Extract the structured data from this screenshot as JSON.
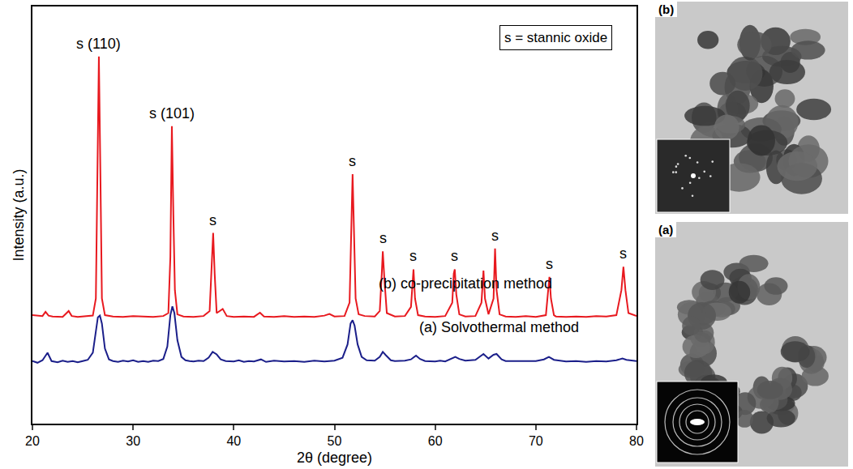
{
  "chart_data": {
    "type": "line",
    "x_label": "2θ (degree)",
    "y_label": "Intensity (a.u.)",
    "xlim": [
      20,
      80
    ],
    "xticks": [
      20,
      30,
      40,
      50,
      60,
      70,
      80
    ],
    "ylim": [
      0,
      100
    ],
    "tick_labels": "x",
    "grid": false,
    "series": [
      {
        "name": "(b) co-precipitation method",
        "color": "#e8191f",
        "x": [
          20,
          21,
          21.3,
          21.6,
          22,
          23,
          23.6,
          23.9,
          24.5,
          25,
          26,
          26.3,
          26.45,
          26.6,
          26.75,
          26.9,
          27.2,
          28,
          29,
          30,
          31,
          32,
          33,
          33.5,
          33.7,
          33.85,
          34.0,
          34.15,
          34.4,
          35,
          36,
          37,
          37.6,
          37.8,
          37.95,
          38.1,
          38.3,
          38.9,
          39.3,
          40,
          41,
          42,
          42.6,
          43,
          44,
          45,
          46,
          47,
          48,
          49,
          49.5,
          50,
          51,
          51.5,
          51.65,
          51.8,
          51.95,
          52.1,
          52.4,
          53,
          54,
          54.5,
          54.7,
          54.8,
          54.95,
          55.2,
          56,
          57,
          57.6,
          57.75,
          57.85,
          58.0,
          58.3,
          59,
          60,
          61,
          61.7,
          61.85,
          61.95,
          62.1,
          62.4,
          63,
          64,
          64.6,
          64.8,
          64.95,
          65.3,
          65.8,
          65.95,
          66.1,
          66.4,
          67,
          68,
          69,
          70,
          71,
          71.2,
          71.35,
          71.5,
          71.8,
          72,
          73,
          74,
          75,
          76,
          77,
          78,
          78.5,
          78.7,
          78.9,
          79.2,
          80
        ],
        "values": [
          26.0,
          25.8,
          26.8,
          25.9,
          25.7,
          25.6,
          27.0,
          25.8,
          25.6,
          25.7,
          25.9,
          30,
          60,
          88,
          60,
          30,
          26.0,
          25.7,
          25.6,
          25.8,
          25.7,
          25.6,
          25.8,
          26.5,
          40,
          71.3,
          50,
          32,
          26.2,
          25.7,
          25.6,
          25.8,
          27,
          38,
          45.7,
          36,
          26.5,
          27.5,
          25.8,
          25.6,
          25.7,
          25.6,
          26.6,
          25.7,
          25.6,
          25.8,
          25.6,
          25.7,
          25.6,
          25.9,
          26.3,
          25.7,
          25.8,
          29,
          45,
          59.8,
          45,
          30,
          26.2,
          25.8,
          25.7,
          27,
          36,
          41.3,
          35,
          26.5,
          25.7,
          25.8,
          28,
          35,
          37,
          30,
          26,
          25.7,
          25.6,
          25.8,
          29,
          36,
          37,
          31,
          26.2,
          25.7,
          25.8,
          29,
          36.7,
          30,
          26.2,
          30,
          42,
          32,
          26.2,
          25.7,
          25.6,
          25.8,
          25.6,
          26,
          32,
          35.2,
          30,
          26,
          25.7,
          25.6,
          25.7,
          25.6,
          25.8,
          25.7,
          26,
          32,
          37.6,
          32,
          26.5,
          25.8
        ]
      },
      {
        "name": "(a) Solvothermal method",
        "color": "#1b1f8a",
        "x": [
          20,
          20.5,
          21,
          21.5,
          21.9,
          22.5,
          23,
          23.5,
          24,
          24.5,
          25,
          25.5,
          26,
          26.3,
          26.5,
          26.7,
          26.9,
          27.2,
          27.6,
          28,
          28.5,
          29,
          29.5,
          30,
          30.5,
          31,
          31.5,
          32,
          32.5,
          33,
          33.4,
          33.7,
          33.9,
          34.1,
          34.4,
          34.8,
          35.2,
          35.6,
          36,
          36.5,
          37,
          37.5,
          37.9,
          38.3,
          38.7,
          39.2,
          40,
          40.5,
          41,
          41.5,
          42,
          42.7,
          43.2,
          44,
          45,
          46,
          47,
          48,
          49,
          50,
          50.8,
          51.3,
          51.6,
          51.8,
          52.0,
          52.3,
          52.7,
          53.2,
          54,
          54.5,
          54.8,
          55.1,
          55.6,
          56,
          57,
          57.6,
          58.1,
          58.5,
          59,
          60,
          60.5,
          61,
          61.6,
          62,
          62.4,
          63,
          64,
          64.8,
          65.3,
          65.8,
          66.1,
          66.6,
          67,
          68,
          69,
          70,
          70.8,
          71.3,
          71.8,
          72.5,
          73,
          74,
          75,
          76,
          77,
          78,
          78.6,
          79,
          80
        ],
        "values": [
          15,
          14.6,
          15.2,
          17,
          15,
          14.7,
          15.1,
          14.8,
          15,
          14.7,
          15.0,
          15.3,
          17,
          22,
          25.5,
          25.9,
          24,
          18,
          15.4,
          15,
          14.8,
          15.1,
          14.9,
          15.2,
          14.8,
          15.0,
          14.8,
          15.1,
          15.0,
          15.5,
          18.5,
          26,
          28.1,
          26.5,
          20,
          16,
          15.2,
          15.0,
          14.9,
          15.1,
          15.0,
          15.8,
          17.2,
          16.6,
          15.4,
          15.0,
          14.9,
          15.2,
          14.8,
          15,
          14.9,
          15.4,
          14.8,
          15.1,
          14.9,
          15.0,
          14.8,
          15.1,
          14.9,
          15.1,
          15.8,
          19,
          24,
          24.8,
          23.5,
          19,
          16,
          15.2,
          15.1,
          16,
          17.2,
          16.4,
          15.2,
          15.0,
          15.1,
          15.4,
          16.3,
          15.5,
          15.0,
          14.9,
          15.1,
          14.9,
          15.5,
          16.0,
          15.5,
          15.1,
          15.3,
          16.7,
          15.6,
          16.5,
          16.7,
          15.4,
          15.0,
          15.0,
          14.9,
          15.0,
          15.4,
          16.0,
          15.3,
          15.0,
          14.9,
          15.0,
          14.8,
          15.0,
          14.9,
          15.2,
          15.6,
          15.3,
          15.0
        ]
      }
    ],
    "annotations": [
      {
        "text": "s (110)",
        "x": 26.6
      },
      {
        "text": "s (101)",
        "x": 33.85
      },
      {
        "text": "s",
        "x": 37.95
      },
      {
        "text": "s",
        "x": 51.8
      },
      {
        "text": "s",
        "x": 54.8
      },
      {
        "text": "s",
        "x": 57.85
      },
      {
        "text": "s",
        "x": 61.95
      },
      {
        "text": "s",
        "x": 65.95
      },
      {
        "text": "s",
        "x": 71.35
      },
      {
        "text": "s",
        "x": 78.7
      },
      {
        "text": "s = stannic oxide"
      }
    ]
  },
  "images": [
    {
      "label": "(b)"
    },
    {
      "label": "(a)"
    }
  ]
}
